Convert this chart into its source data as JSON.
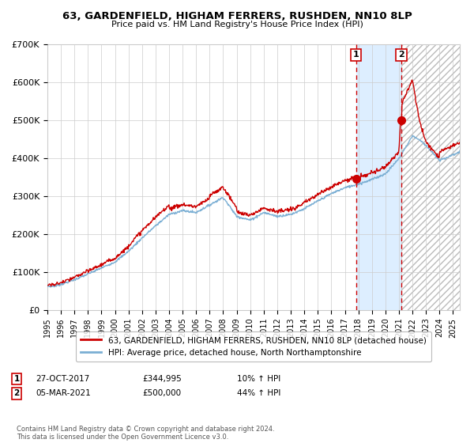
{
  "title1": "63, GARDENFIELD, HIGHAM FERRERS, RUSHDEN, NN10 8LP",
  "title2": "Price paid vs. HM Land Registry's House Price Index (HPI)",
  "legend_line1": "63, GARDENFIELD, HIGHAM FERRERS, RUSHDEN, NN10 8LP (detached house)",
  "legend_line2": "HPI: Average price, detached house, North Northamptonshire",
  "annotation1_label": "1",
  "annotation1_date": "27-OCT-2017",
  "annotation1_price": "£344,995",
  "annotation1_hpi": "10% ↑ HPI",
  "annotation2_label": "2",
  "annotation2_date": "05-MAR-2021",
  "annotation2_price": "£500,000",
  "annotation2_hpi": "44% ↑ HPI",
  "footer": "Contains HM Land Registry data © Crown copyright and database right 2024.\nThis data is licensed under the Open Government Licence v3.0.",
  "hpi_color": "#7bafd4",
  "price_color": "#cc0000",
  "marker_color": "#cc0000",
  "vline_color": "#cc0000",
  "shade_color": "#ddeeff",
  "hatch_color": "#cccccc",
  "bg_color": "#ffffff",
  "grid_color": "#cccccc",
  "ylim": [
    0,
    700000
  ],
  "ytick_values": [
    0,
    100000,
    200000,
    300000,
    400000,
    500000,
    600000,
    700000
  ],
  "ytick_labels": [
    "£0",
    "£100K",
    "£200K",
    "£300K",
    "£400K",
    "£500K",
    "£600K",
    "£700K"
  ],
  "sale1_x": 2017.82,
  "sale1_y": 344995,
  "sale2_x": 2021.17,
  "sale2_y": 500000,
  "xmin": 1995,
  "xmax": 2025.5
}
